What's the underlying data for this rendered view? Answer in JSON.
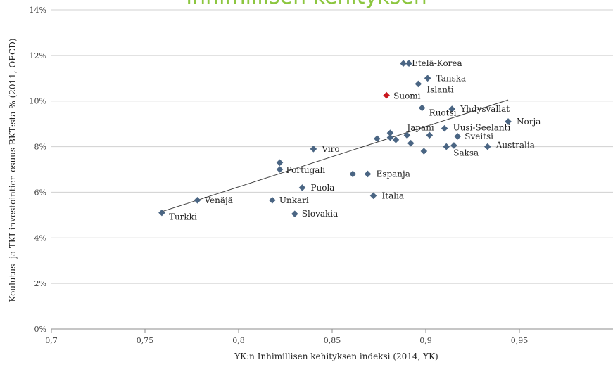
{
  "chart_data": {
    "type": "scatter",
    "title": "Inhimillisen kehityksen",
    "xlabel": "YK:n Inhimillisen kehityksen indeksi (2014, YK)",
    "ylabel": "Koulutus- ja TKI-investointien osuus BKT:sta % (2011, OECD)",
    "xlim": [
      0.7,
      1.0
    ],
    "ylim": [
      0,
      14
    ],
    "x_ticks": [
      "0,7",
      "0,75",
      "0,8",
      "0,85",
      "0,9",
      "0,95"
    ],
    "y_ticks": [
      "0%",
      "2%",
      "4%",
      "6%",
      "8%",
      "10%",
      "12%",
      "14%"
    ],
    "grid": "horizontal",
    "colors": {
      "point": "#4a6583",
      "highlight": "#c9171e",
      "grid": "#d0d0d0",
      "trend": "#404040",
      "title": "#8cc63f"
    },
    "trendline": {
      "x": [
        0.759,
        0.944
      ],
      "y": [
        5.15,
        10.05
      ]
    },
    "points": [
      {
        "label": "Etelä-Korea",
        "x": 0.888,
        "y": 11.65
      },
      {
        "label": "",
        "x": 0.891,
        "y": 11.65
      },
      {
        "label": "Tanska",
        "x": 0.901,
        "y": 11.0
      },
      {
        "label": "Islanti",
        "x": 0.896,
        "y": 10.75
      },
      {
        "label": "Suomi",
        "x": 0.879,
        "y": 10.25,
        "highlight": true
      },
      {
        "label": "Ruotsi",
        "x": 0.898,
        "y": 9.7
      },
      {
        "label": "Yhdysvallat",
        "x": 0.914,
        "y": 9.65
      },
      {
        "label": "Norja",
        "x": 0.944,
        "y": 9.1
      },
      {
        "label": "Uusi-Seelanti",
        "x": 0.91,
        "y": 8.8
      },
      {
        "label": "Japani",
        "x": 0.89,
        "y": 8.5
      },
      {
        "label": "",
        "x": 0.881,
        "y": 8.6
      },
      {
        "label": "",
        "x": 0.881,
        "y": 8.4
      },
      {
        "label": "",
        "x": 0.874,
        "y": 8.35
      },
      {
        "label": "",
        "x": 0.884,
        "y": 8.3
      },
      {
        "label": "",
        "x": 0.902,
        "y": 8.5
      },
      {
        "label": "Sveitsi",
        "x": 0.917,
        "y": 8.45
      },
      {
        "label": "",
        "x": 0.892,
        "y": 8.15
      },
      {
        "label": "Australia",
        "x": 0.933,
        "y": 8.0
      },
      {
        "label": "",
        "x": 0.915,
        "y": 8.05
      },
      {
        "label": "Saksa",
        "x": 0.911,
        "y": 8.0
      },
      {
        "label": "",
        "x": 0.899,
        "y": 7.8
      },
      {
        "label": "Viro",
        "x": 0.84,
        "y": 7.9
      },
      {
        "label": "",
        "x": 0.822,
        "y": 7.3
      },
      {
        "label": "Portugali",
        "x": 0.822,
        "y": 7.0
      },
      {
        "label": "",
        "x": 0.861,
        "y": 6.8
      },
      {
        "label": "Espanja",
        "x": 0.869,
        "y": 6.8
      },
      {
        "label": "Puola",
        "x": 0.834,
        "y": 6.2
      },
      {
        "label": "Italia",
        "x": 0.872,
        "y": 5.85
      },
      {
        "label": "Venäjä",
        "x": 0.778,
        "y": 5.65
      },
      {
        "label": "Unkari",
        "x": 0.818,
        "y": 5.65
      },
      {
        "label": "Turkki",
        "x": 0.759,
        "y": 5.1
      },
      {
        "label": "Slovakia",
        "x": 0.83,
        "y": 5.05
      }
    ]
  }
}
